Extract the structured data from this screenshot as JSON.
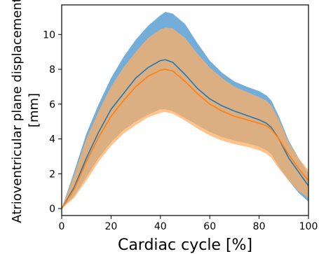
{
  "chart_data": {
    "type": "area",
    "title": "",
    "xlabel": "Cardiac cycle [%]",
    "ylabel_lines": [
      "Atrioventricular plane displacement",
      "[mm]"
    ],
    "xlim": [
      0,
      100
    ],
    "ylim": [
      -0.4,
      11.7
    ],
    "xticks": [
      0,
      20,
      40,
      60,
      80,
      100
    ],
    "yticks": [
      0,
      2,
      4,
      6,
      8,
      10
    ],
    "grid": false,
    "legend": "none",
    "x": [
      0,
      5,
      10,
      15,
      20,
      25,
      30,
      35,
      40,
      42,
      45,
      50,
      55,
      60,
      65,
      70,
      75,
      80,
      83,
      85,
      88,
      92,
      96,
      100
    ],
    "series": [
      {
        "color": "#1f77b4",
        "band_color": "#5a9fd4",
        "mean": [
          0,
          1.2,
          2.9,
          4.4,
          5.7,
          6.6,
          7.5,
          8.1,
          8.5,
          8.55,
          8.4,
          7.7,
          6.9,
          6.3,
          5.9,
          5.6,
          5.35,
          5.1,
          4.9,
          4.65,
          4.0,
          2.9,
          2.1,
          1.3
        ],
        "upper": [
          0,
          2.1,
          4.3,
          6.0,
          7.5,
          8.7,
          9.7,
          10.5,
          11.1,
          11.3,
          11.2,
          10.6,
          9.5,
          8.5,
          7.8,
          7.3,
          7.0,
          6.75,
          6.5,
          6.2,
          5.3,
          3.9,
          2.9,
          2.0
        ],
        "lower": [
          0,
          0.7,
          1.8,
          2.9,
          3.8,
          4.5,
          5.0,
          5.4,
          5.7,
          5.7,
          5.6,
          5.2,
          4.8,
          4.4,
          4.1,
          3.9,
          3.75,
          3.55,
          3.35,
          3.1,
          2.4,
          1.6,
          0.9,
          0.4
        ]
      },
      {
        "color": "#ff7f0e",
        "band_color": "#ffb066",
        "mean": [
          0,
          1.1,
          2.7,
          4.1,
          5.3,
          6.2,
          7.0,
          7.6,
          7.95,
          8.0,
          7.9,
          7.3,
          6.6,
          6.0,
          5.6,
          5.3,
          5.1,
          4.9,
          4.75,
          4.55,
          4.0,
          3.1,
          2.3,
          1.6
        ],
        "upper": [
          0,
          1.9,
          4.0,
          5.6,
          7.0,
          8.1,
          9.0,
          9.8,
          10.3,
          10.4,
          10.35,
          9.8,
          8.9,
          8.1,
          7.5,
          7.0,
          6.7,
          6.4,
          6.2,
          5.9,
          5.1,
          3.8,
          2.9,
          2.2
        ],
        "lower": [
          0,
          0.6,
          1.6,
          2.7,
          3.6,
          4.3,
          4.8,
          5.25,
          5.5,
          5.55,
          5.45,
          5.05,
          4.6,
          4.2,
          3.9,
          3.7,
          3.55,
          3.35,
          3.15,
          2.9,
          2.3,
          1.6,
          1.0,
          0.6
        ]
      }
    ]
  }
}
